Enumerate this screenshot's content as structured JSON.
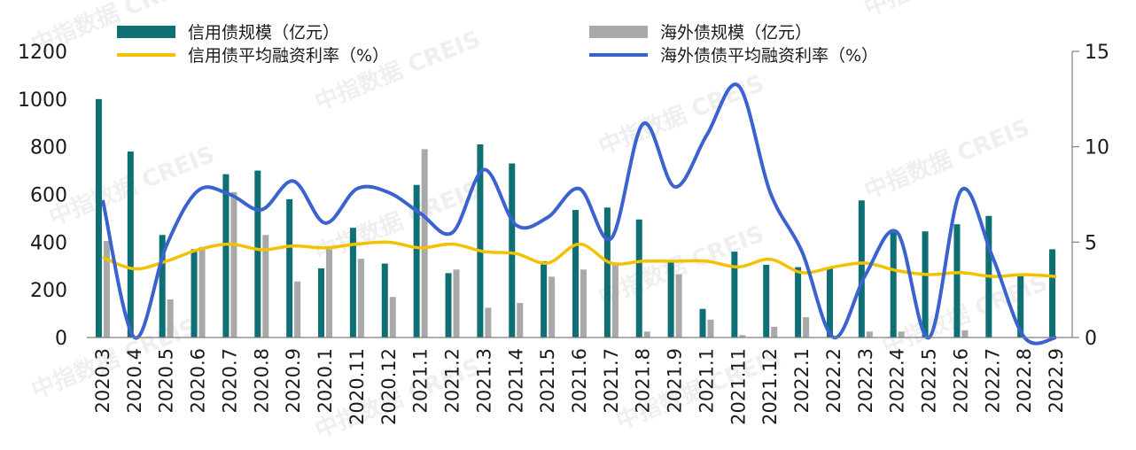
{
  "watermark_text": "中指数据 CREIS",
  "colors": {
    "credit_bar": "#0e6f74",
    "overseas_bar": "#a9a9a9",
    "credit_rate": "#f2c200",
    "overseas_rate": "#3a63cf",
    "axis": "#7f7f7f"
  },
  "chart_data": {
    "type": "bar",
    "categories": [
      "2020.3",
      "2020.4",
      "2020.5",
      "2020.6",
      "2020.7",
      "2020.8",
      "2020.9",
      "2020.1",
      "2020.11",
      "2020.12",
      "2021.1",
      "2021.2",
      "2021.3",
      "2021.4",
      "2021.5",
      "2021.6",
      "2021.7",
      "2021.8",
      "2021.9",
      "2021.1",
      "2021.11",
      "2021.12",
      "2022.1",
      "2022.2",
      "2022.3",
      "2022.4",
      "2022.5",
      "2022.6",
      "2022.7",
      "2022.8",
      "2022.9"
    ],
    "series": [
      {
        "name": "信用债规模（亿元）",
        "kind": "bar",
        "axis": "left",
        "values": [
          1000,
          780,
          430,
          370,
          685,
          700,
          580,
          290,
          460,
          310,
          640,
          270,
          810,
          730,
          320,
          535,
          545,
          495,
          320,
          120,
          360,
          305,
          295,
          290,
          575,
          440,
          445,
          475,
          510,
          265,
          370
        ]
      },
      {
        "name": "海外债规模（亿元）",
        "kind": "bar",
        "axis": "left",
        "values": [
          405,
          0,
          160,
          380,
          610,
          430,
          235,
          370,
          330,
          170,
          790,
          285,
          125,
          145,
          255,
          285,
          310,
          25,
          265,
          75,
          10,
          45,
          85,
          0,
          25,
          25,
          0,
          30,
          0,
          0,
          0
        ]
      },
      {
        "name": "信用债平均融资利率（%）",
        "kind": "line",
        "axis": "right",
        "values": [
          4.2,
          3.6,
          4.0,
          4.6,
          4.9,
          4.6,
          4.8,
          4.7,
          4.9,
          5.0,
          4.7,
          4.9,
          4.5,
          4.4,
          3.9,
          4.9,
          3.9,
          4.0,
          4.0,
          4.0,
          3.7,
          4.1,
          3.4,
          3.7,
          3.9,
          3.5,
          3.3,
          3.4,
          3.2,
          3.3,
          3.2
        ]
      },
      {
        "name": "海外债债平均融资利率（%）",
        "kind": "line",
        "axis": "right",
        "values": [
          7.2,
          0,
          4.8,
          7.7,
          7.5,
          6.7,
          8.2,
          6.0,
          7.8,
          7.6,
          6.5,
          5.5,
          8.8,
          5.9,
          6.3,
          7.8,
          5.2,
          11.2,
          7.9,
          10.6,
          13.2,
          7.6,
          4.5,
          0,
          3.3,
          5.5,
          0,
          7.7,
          4.2,
          0,
          0
        ]
      }
    ],
    "y_left": {
      "min": 0,
      "max": 1200,
      "ticks": [
        0,
        200,
        400,
        600,
        800,
        1000,
        1200
      ]
    },
    "y_right": {
      "min": 0,
      "max": 15,
      "ticks": [
        0,
        5,
        10,
        15
      ]
    },
    "legend_position": "top",
    "grid": false
  }
}
